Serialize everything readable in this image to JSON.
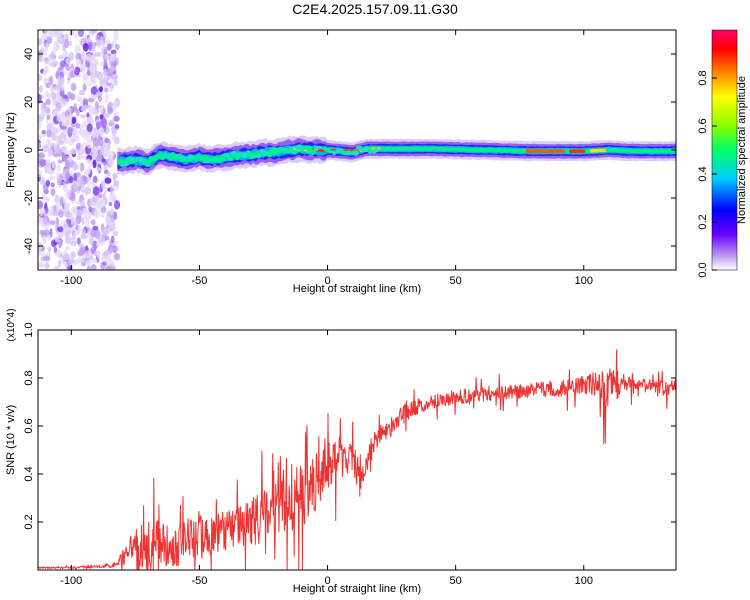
{
  "title": "C2E4.2025.157.09.11.G30",
  "chart_data": [
    {
      "type": "heatmap",
      "xlabel": "Height of straight line (km)",
      "ylabel": "Frequency (Hz)",
      "xlim": [
        -113,
        136
      ],
      "ylim": [
        -50,
        50
      ],
      "xticks": [
        -100,
        -50,
        0,
        50,
        100
      ],
      "yticks": [
        -40,
        -20,
        0,
        20,
        40
      ],
      "colorbar": {
        "label": "Normalized spectral amplitude",
        "range": [
          0.0,
          1.0
        ],
        "ticks": [
          0.0,
          0.2,
          0.4,
          0.6,
          0.8
        ],
        "colors": [
          "#ffffff",
          "#c8a8f0",
          "#6600ff",
          "#0000ff",
          "#00ccff",
          "#00ff66",
          "#88ff00",
          "#ffff00",
          "#ff8800",
          "#ff0000",
          "#ff0066"
        ]
      },
      "ridge": {
        "x": [
          -82,
          -75,
          -70,
          -65,
          -60,
          -55,
          -50,
          -45,
          -40,
          -35,
          -30,
          -25,
          -20,
          -15,
          -10,
          -5,
          0,
          5,
          10,
          15,
          20,
          40,
          60,
          80,
          100,
          110,
          120,
          136
        ],
        "freq": [
          -5,
          -4,
          -5,
          -2,
          -3,
          -4,
          -3,
          -4,
          -3,
          -2,
          -2,
          -1,
          -1,
          0,
          0.5,
          0,
          0,
          -0.5,
          -1,
          0.5,
          0.5,
          0.5,
          0,
          -0.5,
          -0.5,
          0,
          -0.5,
          -0.5
        ]
      },
      "noise_region_x": [
        -113,
        -82
      ],
      "grid": false
    },
    {
      "type": "line",
      "xlabel": "Height of straight line (km)",
      "ylabel": "SNR (10 * v/v)",
      "y_multiplier": "(x10^4)",
      "xlim": [
        -113,
        136
      ],
      "ylim": [
        0,
        1.0
      ],
      "xticks": [
        -100,
        -50,
        0,
        50,
        100
      ],
      "yticks": [
        0.2,
        0.4,
        0.6,
        0.8,
        1.0
      ],
      "series": [
        {
          "color": "#ee3333",
          "x": [
            -113,
            -100,
            -90,
            -83,
            -80,
            -75,
            -70,
            -65,
            -60,
            -55,
            -50,
            -45,
            -40,
            -35,
            -30,
            -25,
            -20,
            -15,
            -12,
            -10,
            -5,
            0,
            5,
            10,
            13,
            15,
            20,
            25,
            30,
            40,
            50,
            60,
            70,
            80,
            90,
            100,
            105,
            108,
            110,
            115,
            120,
            125,
            130,
            136
          ],
          "y": [
            0.01,
            0.01,
            0.015,
            0.02,
            0.04,
            0.08,
            0.1,
            0.12,
            0.09,
            0.12,
            0.15,
            0.14,
            0.16,
            0.18,
            0.2,
            0.22,
            0.26,
            0.3,
            0.32,
            0.28,
            0.36,
            0.44,
            0.47,
            0.49,
            0.34,
            0.46,
            0.56,
            0.6,
            0.66,
            0.7,
            0.72,
            0.73,
            0.74,
            0.75,
            0.76,
            0.77,
            0.78,
            0.76,
            0.74,
            0.79,
            0.76,
            0.77,
            0.76,
            0.76
          ],
          "noise": [
            0.003,
            0.003,
            0.006,
            0.01,
            0.04,
            0.1,
            0.11,
            0.1,
            0.08,
            0.09,
            0.1,
            0.08,
            0.09,
            0.08,
            0.1,
            0.11,
            0.13,
            0.14,
            0.16,
            0.14,
            0.12,
            0.1,
            0.09,
            0.08,
            0.06,
            0.06,
            0.04,
            0.04,
            0.035,
            0.03,
            0.03,
            0.03,
            0.03,
            0.03,
            0.035,
            0.04,
            0.06,
            0.09,
            0.1,
            0.04,
            0.03,
            0.03,
            0.03,
            0.04
          ]
        }
      ],
      "grid": false
    }
  ]
}
